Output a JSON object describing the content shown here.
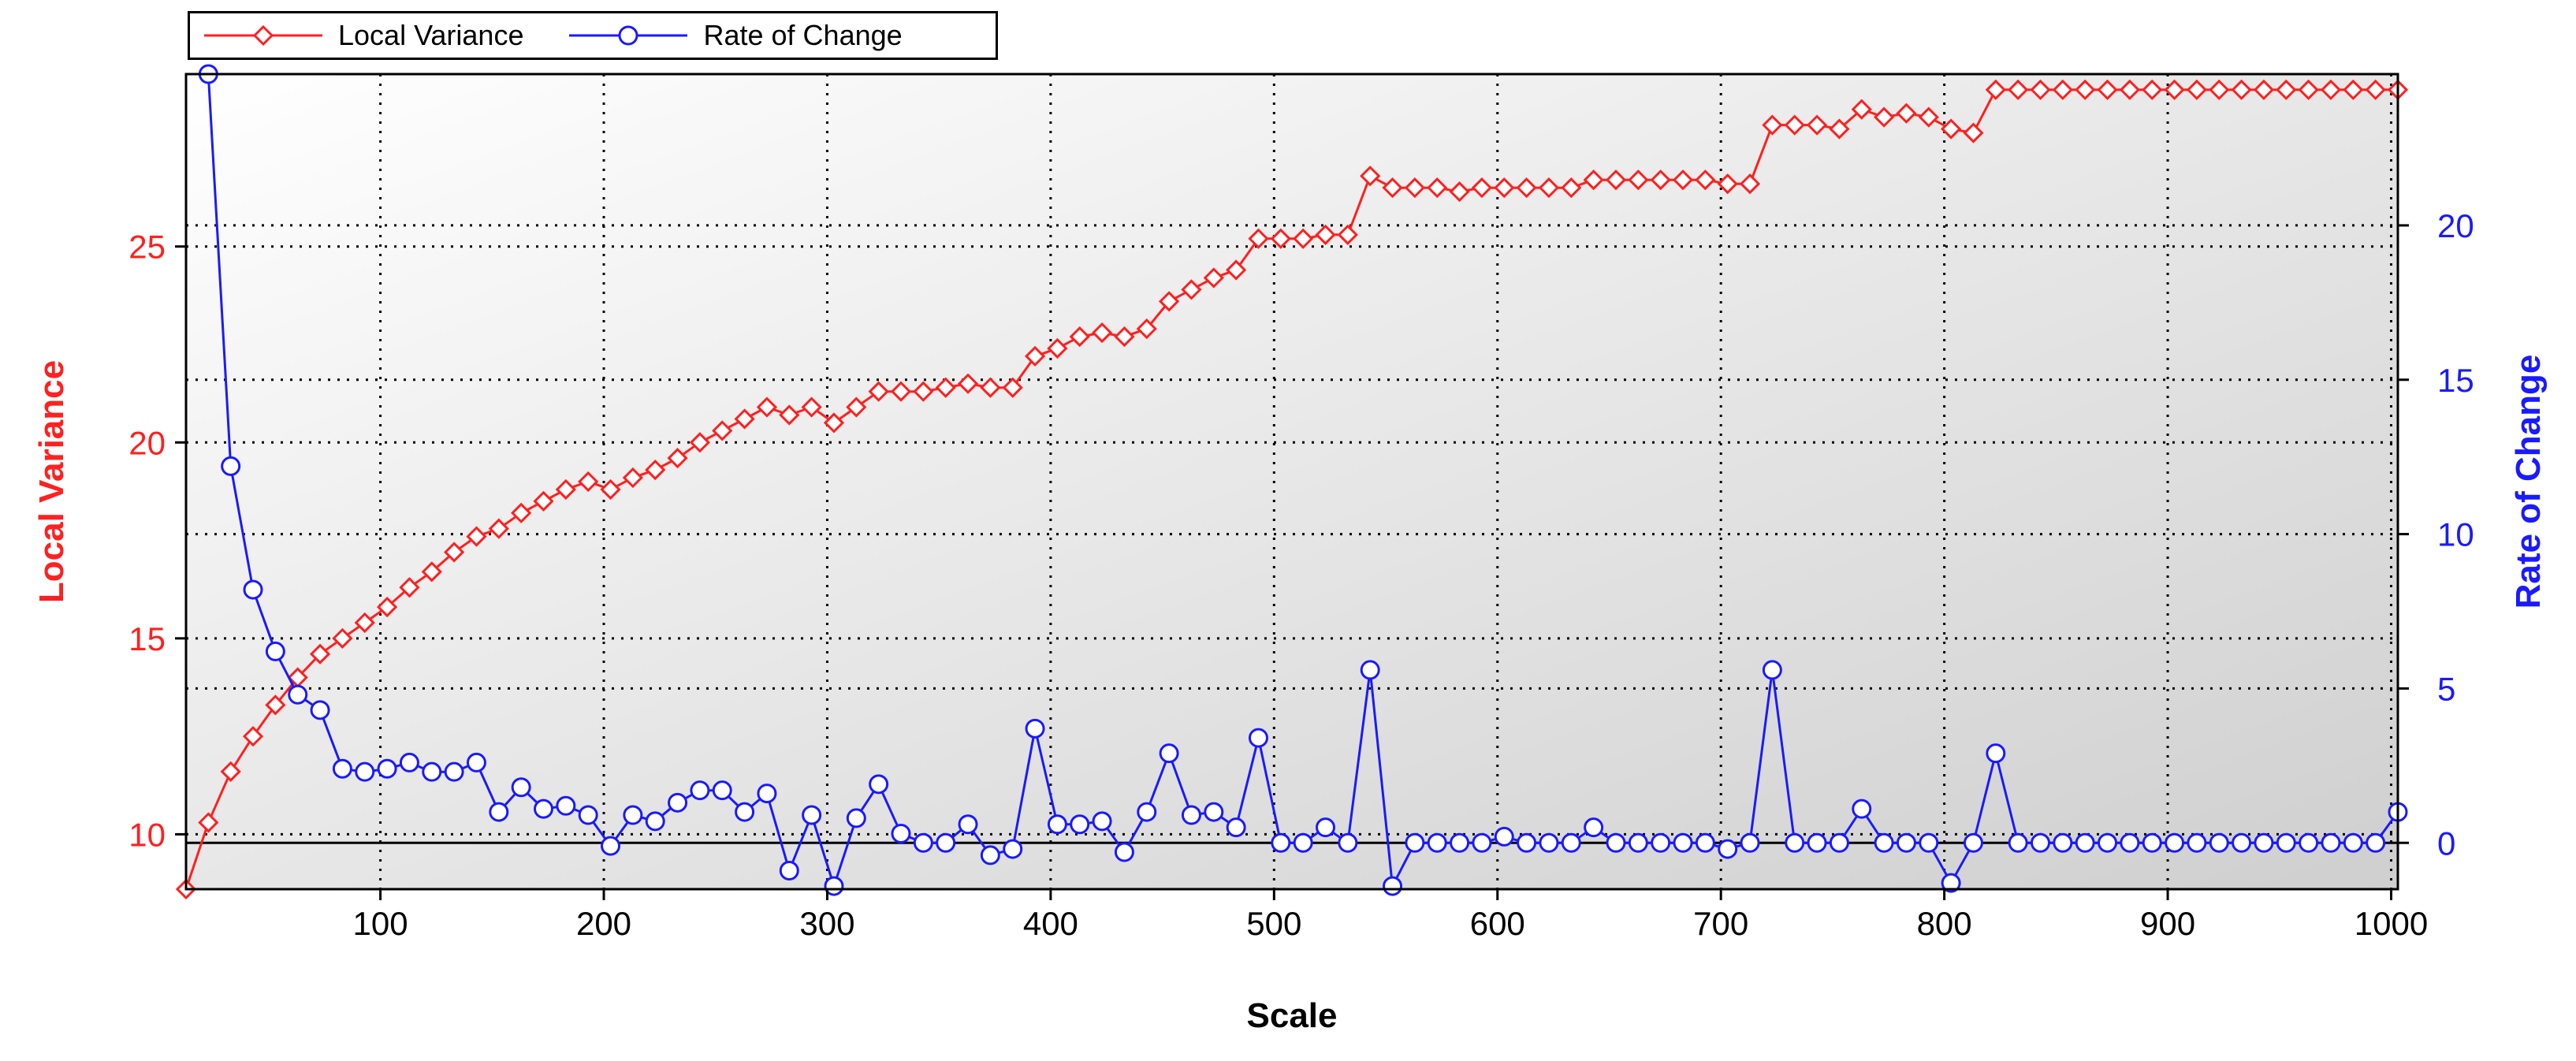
{
  "chart_data": {
    "type": "line",
    "xlabel": "Scale",
    "ylabel_left": "Local Variance",
    "ylabel_right": "Rate of Change",
    "xlim": [
      13,
      1003
    ],
    "ylim_left": [
      8.6,
      29.4
    ],
    "ylim_right": [
      -1.5,
      24.9
    ],
    "xticks": [
      100,
      200,
      300,
      400,
      500,
      600,
      700,
      800,
      900,
      1000
    ],
    "yticks_left": [
      10,
      15,
      20,
      25
    ],
    "yticks_right": [
      0,
      5,
      10,
      15,
      20
    ],
    "grid": "dotted",
    "legend_position": "top-left, above plot",
    "background": "gradient light gray",
    "series": [
      {
        "name": "Local Variance",
        "axis": "left",
        "color": "#ff2020",
        "marker": "diamond",
        "x": [
          13,
          23,
          33,
          43,
          53,
          63,
          73,
          83,
          93,
          103,
          113,
          123,
          133,
          143,
          153,
          163,
          173,
          183,
          193,
          203,
          213,
          223,
          233,
          243,
          253,
          263,
          273,
          283,
          293,
          303,
          313,
          323,
          333,
          343,
          353,
          363,
          373,
          383,
          393,
          403,
          413,
          423,
          433,
          443,
          453,
          463,
          473,
          483,
          493,
          503,
          513,
          523,
          533,
          543,
          553,
          563,
          573,
          583,
          593,
          603,
          613,
          623,
          633,
          643,
          653,
          663,
          673,
          683,
          693,
          703,
          713,
          723,
          733,
          743,
          753,
          763,
          773,
          783,
          793,
          803,
          813,
          823,
          833,
          843,
          853,
          863,
          873,
          883,
          893,
          903,
          913,
          923,
          933,
          943,
          953,
          963,
          973,
          983,
          993,
          1003
        ],
        "values": [
          8.6,
          10.3,
          11.6,
          12.5,
          13.3,
          14.0,
          14.6,
          15.0,
          15.4,
          15.8,
          16.3,
          16.7,
          17.2,
          17.6,
          17.8,
          18.2,
          18.5,
          18.8,
          19.0,
          18.8,
          19.1,
          19.3,
          19.6,
          20.0,
          20.3,
          20.6,
          20.9,
          20.7,
          20.9,
          20.5,
          20.9,
          21.3,
          21.3,
          21.3,
          21.4,
          21.5,
          21.4,
          21.4,
          22.2,
          22.4,
          22.7,
          22.8,
          22.7,
          22.9,
          23.6,
          23.9,
          24.2,
          24.4,
          25.2,
          25.2,
          25.2,
          25.3,
          25.3,
          26.8,
          26.5,
          26.5,
          26.5,
          26.4,
          26.5,
          26.5,
          26.5,
          26.5,
          26.5,
          26.7,
          26.7,
          26.7,
          26.7,
          26.7,
          26.7,
          26.6,
          26.6,
          28.1,
          28.1,
          28.1,
          28.0,
          28.5,
          28.3,
          28.4,
          28.3,
          28.0,
          27.9,
          29.0,
          29.0,
          29.0,
          29.0,
          29.0,
          29.0,
          29.0,
          29.0,
          29.0,
          29.0,
          29.0,
          29.0,
          29.0,
          29.0,
          29.0,
          29.0,
          29.0,
          29.0,
          29.0
        ]
      },
      {
        "name": "Rate of Change",
        "axis": "right",
        "color": "#1a1aff",
        "marker": "circle",
        "x": [
          23,
          33,
          43,
          53,
          63,
          73,
          83,
          93,
          103,
          113,
          123,
          133,
          143,
          153,
          163,
          173,
          183,
          193,
          203,
          213,
          223,
          233,
          243,
          253,
          263,
          273,
          283,
          293,
          303,
          313,
          323,
          333,
          343,
          353,
          363,
          373,
          383,
          393,
          403,
          413,
          423,
          433,
          443,
          453,
          463,
          473,
          483,
          493,
          503,
          513,
          523,
          533,
          543,
          553,
          563,
          573,
          583,
          593,
          603,
          613,
          623,
          633,
          643,
          653,
          663,
          673,
          683,
          693,
          703,
          713,
          723,
          733,
          743,
          753,
          763,
          773,
          783,
          793,
          803,
          813,
          823,
          833,
          843,
          853,
          863,
          873,
          883,
          893,
          903,
          913,
          923,
          933,
          943,
          953,
          963,
          973,
          983,
          993,
          1003
        ],
        "values": [
          24.9,
          12.2,
          8.2,
          6.2,
          4.8,
          4.3,
          2.4,
          2.3,
          2.4,
          2.6,
          2.3,
          2.3,
          2.6,
          1.0,
          1.8,
          1.1,
          1.2,
          0.9,
          -0.1,
          0.9,
          0.7,
          1.3,
          1.7,
          1.7,
          1.0,
          1.6,
          -0.9,
          0.9,
          -1.4,
          0.8,
          1.9,
          0.3,
          0.0,
          0.0,
          0.6,
          -0.4,
          -0.2,
          3.7,
          0.6,
          0.6,
          0.7,
          -0.3,
          1.0,
          2.9,
          0.9,
          1.0,
          0.5,
          3.4,
          0.0,
          0.0,
          0.5,
          0.0,
          5.6,
          -1.4,
          0.0,
          0.0,
          0.0,
          0.0,
          0.2,
          0.0,
          0.0,
          0.0,
          0.5,
          0.0,
          0.0,
          0.0,
          0.0,
          0.0,
          -0.2,
          0.0,
          5.6,
          0.0,
          0.0,
          0.0,
          1.1,
          0.0,
          0.0,
          0.0,
          -1.3,
          0.0,
          2.9,
          0.0,
          0.0,
          0.0,
          0.0,
          0.0,
          0.0,
          0.0,
          0.0,
          0.0,
          0.0,
          0.0,
          0.0,
          0.0,
          0.0,
          0.0,
          0.0,
          0.0,
          1.0
        ]
      }
    ]
  }
}
